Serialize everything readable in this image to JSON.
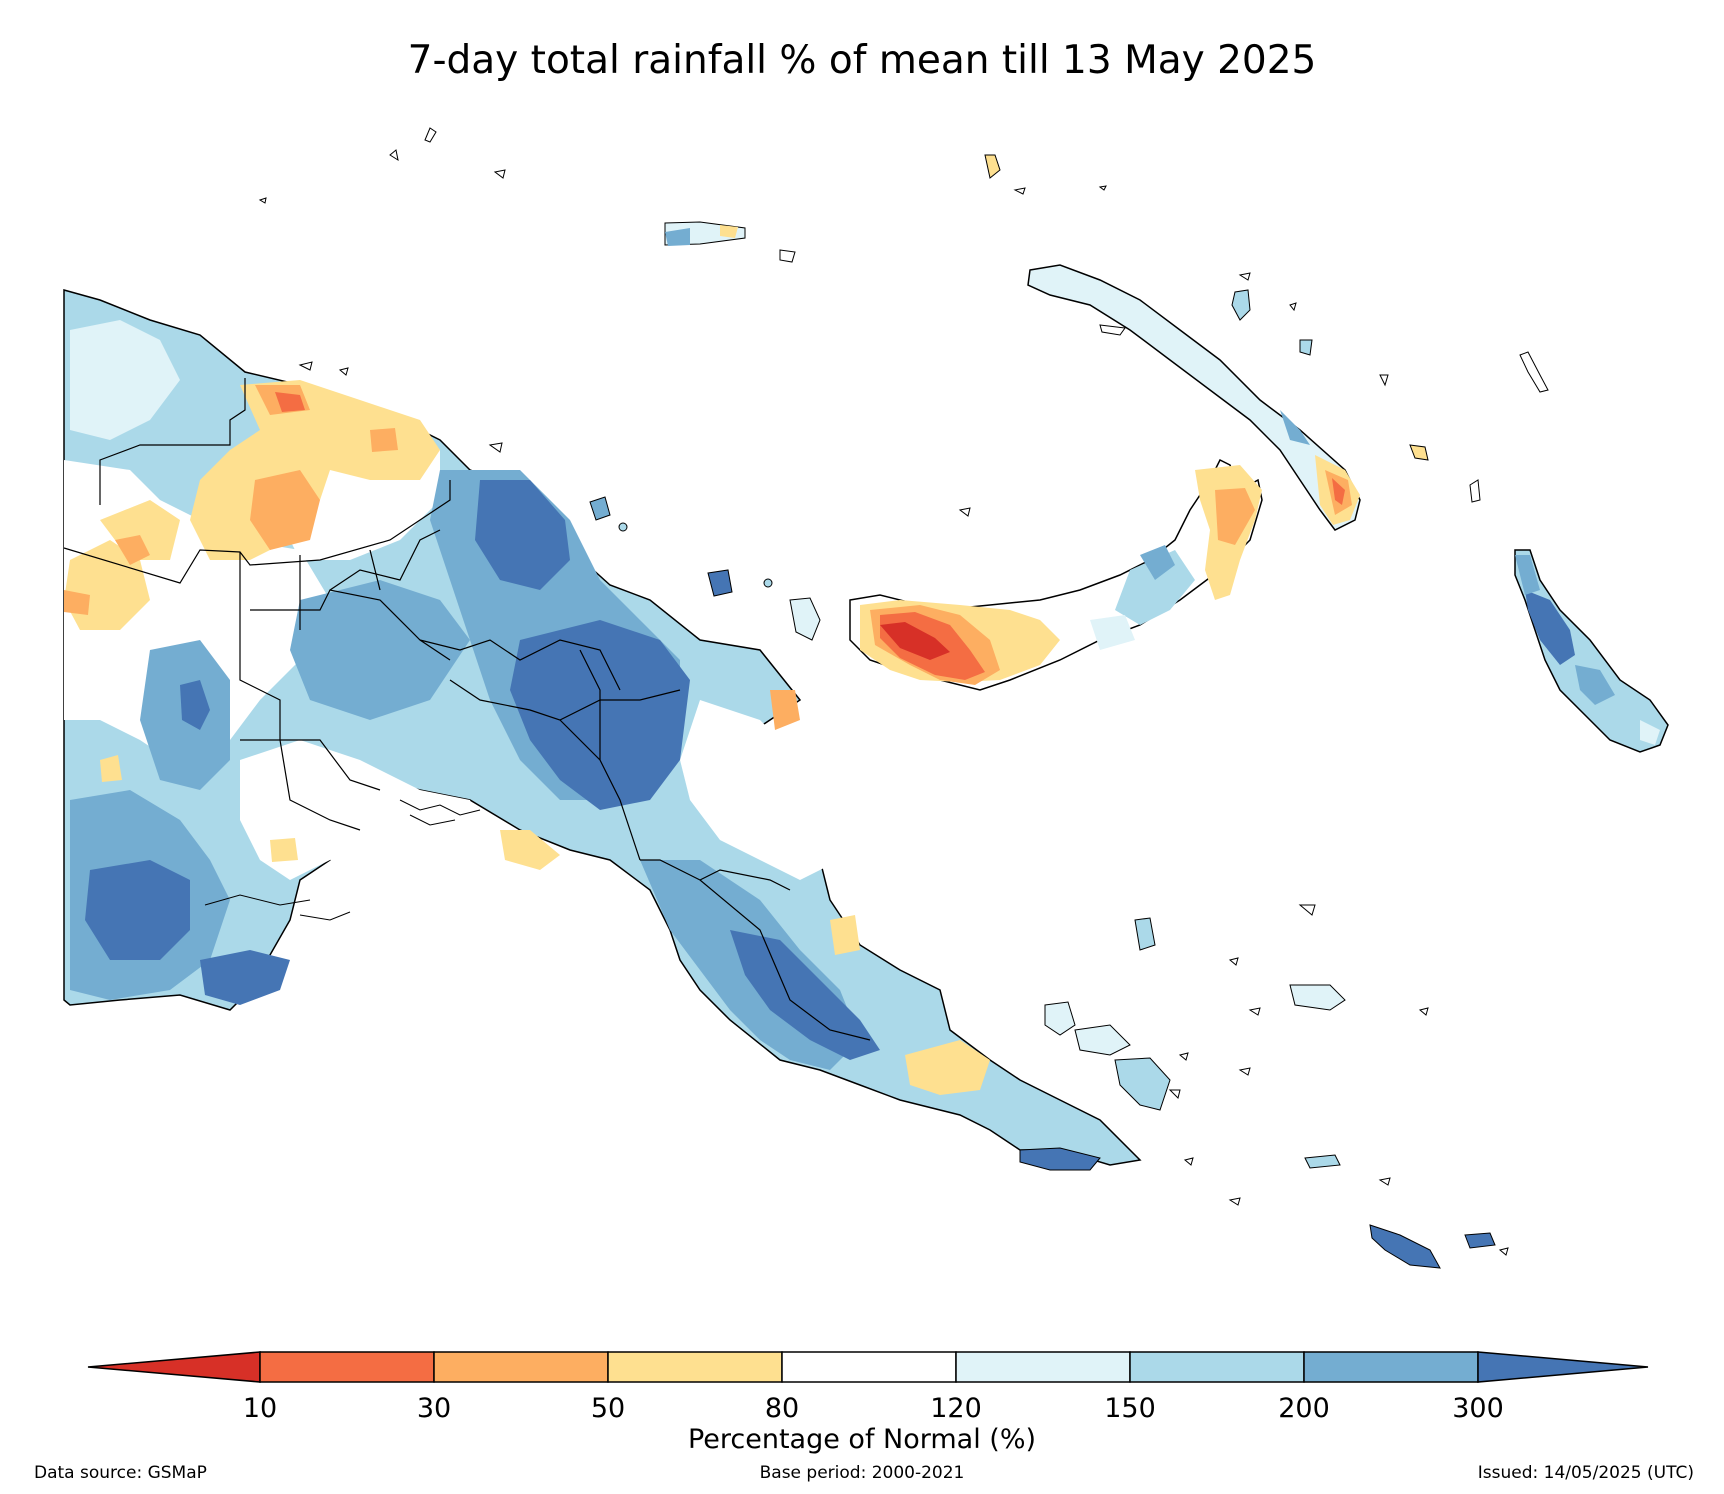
{
  "title": "7-day total rainfall % of mean till 13 May 2025",
  "legend": {
    "title": "Percentage of Normal (%)",
    "ticks": [
      "10",
      "30",
      "50",
      "80",
      "120",
      "150",
      "200",
      "300"
    ],
    "colors": {
      "below_10": "#d73027",
      "10_30": "#f46d43",
      "30_50": "#fdae61",
      "50_80": "#fee090",
      "80_120": "#ffffff",
      "120_150": "#e0f3f8",
      "150_200": "#abd9e9",
      "200_300": "#74add1",
      "above_300": "#4575b4"
    }
  },
  "footer": {
    "data_source": "Data source: GSMaP",
    "base_period": "Base period: 2000-2021",
    "issued": "Issued: 14/05/2025 (UTC)"
  }
}
